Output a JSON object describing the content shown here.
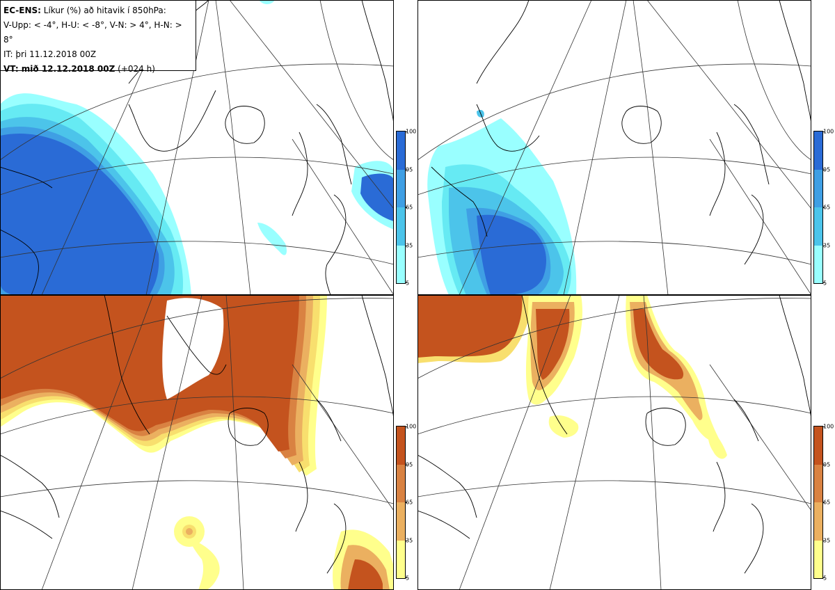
{
  "info": {
    "line1_bold": "EC-ENS:",
    "line1_rest": "Líkur (%) að hitavik í 850hPa:",
    "line2": "V-Upp: < -4°, H-U: < -8°, V-N: > 4°, H-N: > 8°",
    "line3": "IT: þri 11.12.2018 00Z",
    "line4_bold": "VT: mið 12.12.2018 00Z",
    "line4_rest": "(+024 h)"
  },
  "colorbar": {
    "ticks": [
      "100",
      "95",
      "65",
      "35",
      "5"
    ]
  },
  "colors": {
    "cold_scale": [
      "#99ffff",
      "#66eaf3",
      "#4cc4ea",
      "#3f9fe4",
      "#2a6bd6"
    ],
    "warm_scale": [
      "#ffff8c",
      "#f8df6e",
      "#ebb060",
      "#d98242",
      "#c4531e"
    ],
    "coast": "#000000"
  }
}
